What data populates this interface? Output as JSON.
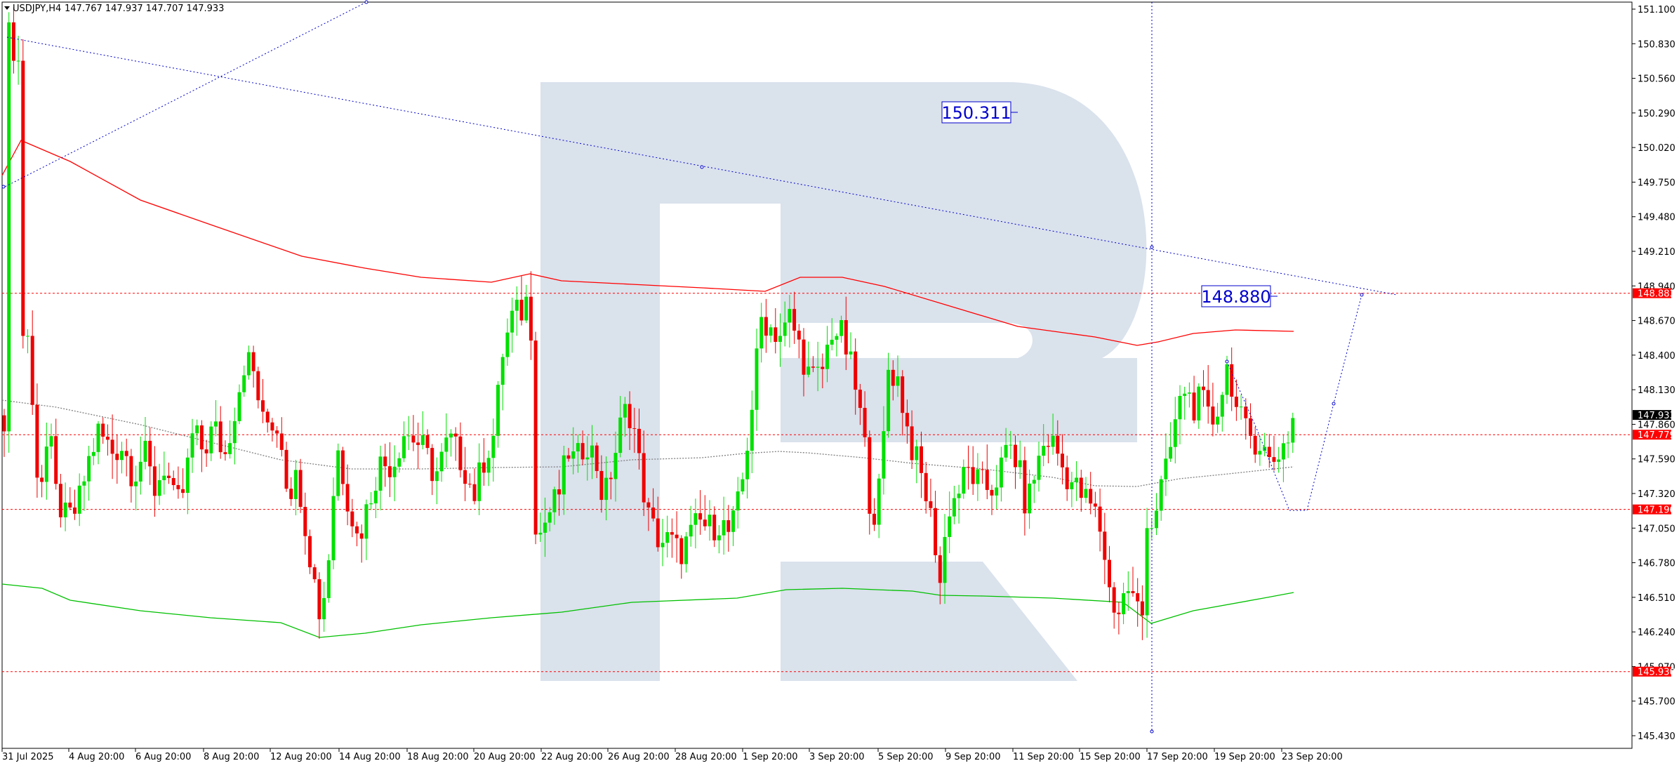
{
  "header": {
    "symbol": "USDJPY,H4",
    "ohlc": "147.767 147.937 147.707 147.933"
  },
  "chart_data": {
    "type": "candlestick",
    "symbol": "USDJPY",
    "timeframe": "H4",
    "open": 147.767,
    "high": 147.937,
    "low": 147.707,
    "close": 147.933,
    "ylim": [
      145.35,
      151.15
    ],
    "y_ticks": [
      "151.100",
      "150.830",
      "150.560",
      "150.290",
      "150.020",
      "149.750",
      "149.480",
      "149.210",
      "148.940",
      "148.670",
      "148.400",
      "148.130",
      "147.860",
      "147.590",
      "147.320",
      "147.050",
      "146.780",
      "146.510",
      "146.240",
      "145.970",
      "145.700",
      "145.430"
    ],
    "x_labels": [
      "31 Jul 2025",
      "4 Aug 20:00",
      "6 Aug 20:00",
      "8 Aug 20:00",
      "12 Aug 20:00",
      "14 Aug 20:00",
      "18 Aug 20:00",
      "20 Aug 20:00",
      "22 Aug 20:00",
      "26 Aug 20:00",
      "28 Aug 20:00",
      "1 Sep 20:00",
      "3 Sep 20:00",
      "5 Sep 20:00",
      "9 Sep 20:00",
      "11 Sep 20:00",
      "15 Sep 20:00",
      "17 Sep 20:00",
      "19 Sep 20:00",
      "23 Sep 20:00"
    ],
    "horizontal_levels": [
      {
        "label": "148.883",
        "value": 148.883,
        "color": "#ff0000"
      },
      {
        "label": "147.779",
        "value": 147.779,
        "color": "#ff0000"
      },
      {
        "label": "147.196",
        "value": 147.196,
        "color": "#ff0000"
      },
      {
        "label": "145.930",
        "value": 145.93,
        "color": "#ff0000"
      }
    ],
    "current_price_label": "147.933",
    "targets": [
      {
        "label": "150.311",
        "value": 150.311
      },
      {
        "label": "148.880",
        "value": 148.88
      }
    ],
    "series": [
      {
        "kind": "red moving average",
        "color": "#ff0000"
      },
      {
        "kind": "green moving average",
        "color": "#00c000"
      },
      {
        "kind": "grey dotted moving average",
        "color": "#808080"
      }
    ],
    "projection": [
      "147.930 → 147.196 → 148.880"
    ],
    "colors": {
      "bull": "#00e000",
      "bear": "#ee0000",
      "level": "#ff0000",
      "trend": "#0000cc",
      "watermark": "#d4dde9"
    }
  }
}
